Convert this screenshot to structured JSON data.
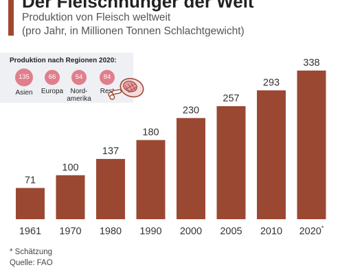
{
  "header": {
    "title": "Der Fleischhunger der Welt",
    "subtitle_line1": "Produktion von Fleisch weltweit",
    "subtitle_line2": "(pro Jahr, in Millionen Tonnen Schlachtgewicht)"
  },
  "regions": {
    "title": "Produktion nach Regionen 2020:",
    "items": [
      {
        "value": "135",
        "label": "Asien"
      },
      {
        "value": "66",
        "label": "Europa"
      },
      {
        "value": "54",
        "label": "Nord-\namerika"
      },
      {
        "value": "84",
        "label": "Rest"
      }
    ]
  },
  "footnotes": {
    "estimate": "* Schätzung",
    "source": "Quelle: FAO"
  },
  "colors": {
    "bar": "#9b4833",
    "accent": "#a0472f",
    "bubble": "#e07f8c"
  },
  "icons": {
    "ham": "ham-icon"
  },
  "chart_data": {
    "type": "bar",
    "categories": [
      "1961",
      "1970",
      "1980",
      "1990",
      "2000",
      "2005",
      "2010",
      "2020*"
    ],
    "values": [
      71,
      100,
      137,
      180,
      230,
      257,
      293,
      338
    ],
    "title": "",
    "xlabel": "",
    "ylabel": "",
    "ylim": [
      0,
      338
    ],
    "grid": false,
    "legend": "none"
  }
}
